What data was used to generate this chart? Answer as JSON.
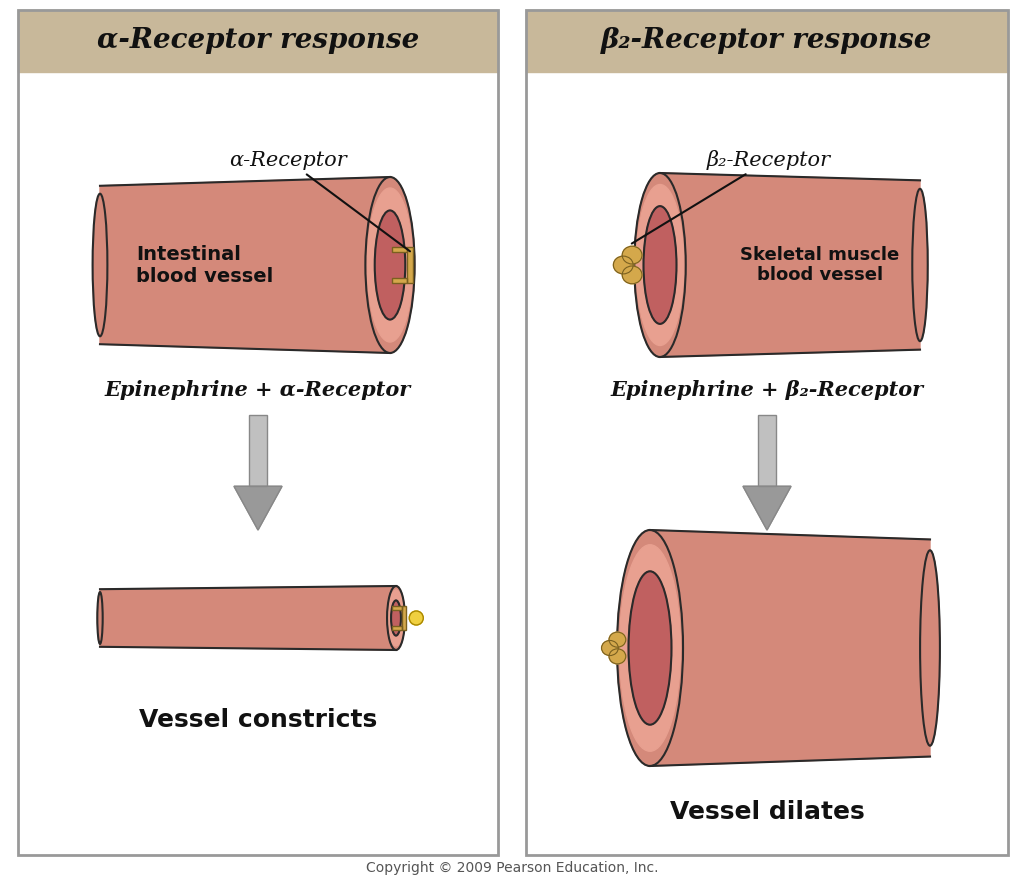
{
  "bg_color": "#ffffff",
  "header_bg": "#c8b89a",
  "vessel_outer": "#d4897a",
  "vessel_wall": "#c8806e",
  "vessel_lumen": "#c06060",
  "vessel_outline": "#2a2a2a",
  "receptor_color": "#d4a84b",
  "receptor_outline": "#7a6020",
  "arrow_fill": "#aaaaaa",
  "arrow_edge": "#888888",
  "text_color": "#111111",
  "copyright_color": "#555555",
  "panel1_title": "α-Receptor response",
  "panel2_title": "β₂-Receptor response",
  "panel1_receptor_label": "α-Receptor",
  "panel2_receptor_label": "β₂-Receptor",
  "panel1_vessel_label": "Intestinal\nblood vessel",
  "panel2_vessel_label": "Skeletal muscle\nblood vessel",
  "panel1_epi_label": "Epinephrine + α-Receptor",
  "panel2_epi_label": "Epinephrine + β₂-Receptor",
  "panel1_result_label": "Vessel constricts",
  "panel2_result_label": "Vessel dilates",
  "copyright_text": "Copyright © 2009 Pearson Education, Inc."
}
